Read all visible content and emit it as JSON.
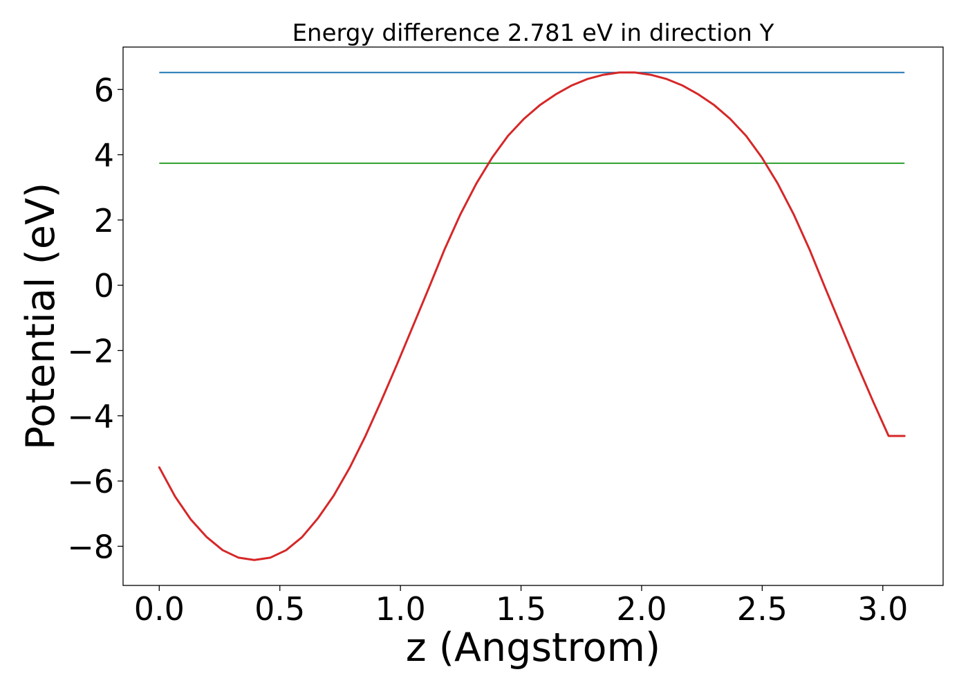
{
  "chart_data": {
    "type": "line",
    "title": "Energy difference 2.781 eV in direction Y",
    "xlabel": "z (Angstrom)",
    "ylabel": "Potential (eV)",
    "xlim": [
      -0.15,
      3.25
    ],
    "ylim": [
      -9.2,
      7.3
    ],
    "xticks": [
      0.0,
      0.5,
      1.0,
      1.5,
      2.0,
      2.5,
      3.0
    ],
    "xtick_labels": [
      "0.0",
      "0.5",
      "1.0",
      "1.5",
      "2.0",
      "2.5",
      "3.0"
    ],
    "yticks": [
      -8,
      -6,
      -4,
      -2,
      0,
      2,
      4,
      6
    ],
    "ytick_labels": [
      "−8",
      "−6",
      "−4",
      "−2",
      "0",
      "2",
      "4",
      "6"
    ],
    "grid": false,
    "legend": false,
    "hlines": [
      {
        "y": 6.52,
        "x_range": [
          0.0,
          3.09
        ],
        "color": "#1f77b4"
      },
      {
        "y": 3.74,
        "x_range": [
          0.0,
          3.09
        ],
        "color": "#2ca02c"
      }
    ],
    "series": [
      {
        "color": "#d62728",
        "x": [
          0.0,
          0.066,
          0.131,
          0.197,
          0.263,
          0.329,
          0.394,
          0.46,
          0.526,
          0.592,
          0.657,
          0.723,
          0.789,
          0.855,
          0.92,
          0.986,
          1.052,
          1.118,
          1.183,
          1.249,
          1.315,
          1.381,
          1.446,
          1.512,
          1.578,
          1.644,
          1.709,
          1.775,
          1.841,
          1.907,
          1.972,
          2.038,
          2.104,
          2.17,
          2.235,
          2.301,
          2.367,
          2.433,
          2.498,
          2.564,
          2.63,
          2.696,
          2.761,
          2.827,
          2.893,
          2.959,
          3.024,
          3.09
        ],
        "y": [
          -5.58,
          -6.48,
          -7.18,
          -7.72,
          -8.12,
          -8.35,
          -8.42,
          -8.35,
          -8.12,
          -7.72,
          -7.15,
          -6.45,
          -5.6,
          -4.62,
          -3.55,
          -2.42,
          -1.25,
          -0.08,
          1.1,
          2.18,
          3.12,
          3.92,
          4.58,
          5.1,
          5.52,
          5.85,
          6.12,
          6.32,
          6.45,
          6.52,
          6.52,
          6.45,
          6.32,
          6.12,
          5.85,
          5.52,
          5.1,
          4.58,
          3.92,
          3.12,
          2.18,
          1.1,
          -0.08,
          -1.25,
          -2.42,
          -3.55,
          -4.62,
          -4.62
        ]
      }
    ]
  }
}
